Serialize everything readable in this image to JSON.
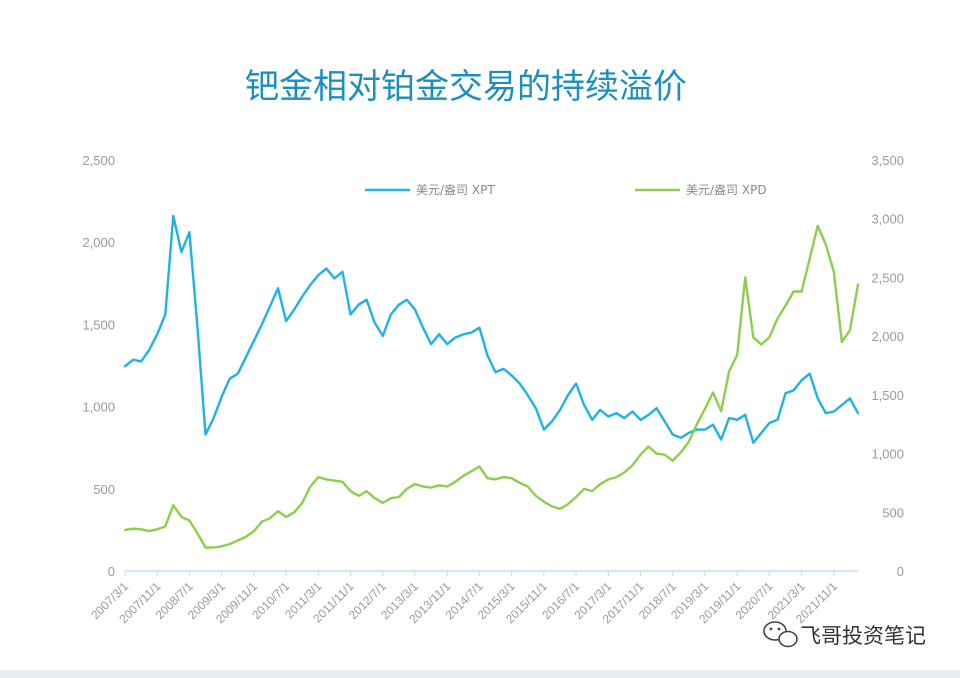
{
  "colors": {
    "xpt": "#1eb2e8",
    "xpd": "#8ccf4d",
    "title": "#1a8fc0",
    "axis": "#b9e6f5",
    "tick": "#9a9a9a"
  },
  "watermark": "飞哥投资笔记",
  "chart_data": {
    "type": "line",
    "title": "钯金相对铂金交易的持续溢价",
    "legend_position": "top",
    "grid": false,
    "x_tick_labels": [
      "2007/3/1",
      "2007/11/1",
      "2008/7/1",
      "2009/3/1",
      "2009/11/1",
      "2010/7/1",
      "2011/3/1",
      "2011/11/1",
      "2012/7/1",
      "2013/3/1",
      "2013/11/1",
      "2014/7/1",
      "2015/3/1",
      "2015/11/1",
      "2016/7/1",
      "2017/3/1",
      "2017/11/1",
      "2018/7/1",
      "2019/3/1",
      "2019/11/1",
      "2020/7/1",
      "2021/3/1",
      "2021/11/1"
    ],
    "y_left": {
      "range": [
        0,
        2500
      ],
      "ticks": [
        "0",
        "500",
        "1,000",
        "1,500",
        "2,000",
        "2,500"
      ],
      "tick_values": [
        0,
        500,
        1000,
        1500,
        2000,
        2500
      ]
    },
    "y_right": {
      "range": [
        0,
        3500
      ],
      "ticks": [
        "0",
        "500",
        "1,000",
        "1,500",
        "2,000",
        "2,500",
        "3,000",
        "3,500"
      ],
      "tick_values": [
        0,
        500,
        1000,
        1500,
        2000,
        2500,
        3000,
        3500
      ]
    },
    "series": [
      {
        "name": "美元/盎司 XPT",
        "axis": "left",
        "color": "#1eb2e8",
        "x": [
          "2007/3/1",
          "2007/5/1",
          "2007/7/1",
          "2007/9/1",
          "2007/11/1",
          "2008/1/1",
          "2008/3/1",
          "2008/5/1",
          "2008/7/1",
          "2008/9/1",
          "2008/11/1",
          "2009/1/1",
          "2009/3/1",
          "2009/5/1",
          "2009/7/1",
          "2009/9/1",
          "2009/11/1",
          "2010/1/1",
          "2010/3/1",
          "2010/5/1",
          "2010/7/1",
          "2010/9/1",
          "2010/11/1",
          "2011/1/1",
          "2011/3/1",
          "2011/5/1",
          "2011/7/1",
          "2011/9/1",
          "2011/11/1",
          "2012/1/1",
          "2012/3/1",
          "2012/5/1",
          "2012/7/1",
          "2012/9/1",
          "2012/11/1",
          "2013/1/1",
          "2013/3/1",
          "2013/5/1",
          "2013/7/1",
          "2013/9/1",
          "2013/11/1",
          "2014/1/1",
          "2014/3/1",
          "2014/5/1",
          "2014/7/1",
          "2014/9/1",
          "2014/11/1",
          "2015/1/1",
          "2015/3/1",
          "2015/5/1",
          "2015/7/1",
          "2015/9/1",
          "2015/11/1",
          "2016/1/1",
          "2016/3/1",
          "2016/5/1",
          "2016/7/1",
          "2016/9/1",
          "2016/11/1",
          "2017/1/1",
          "2017/3/1",
          "2017/5/1",
          "2017/7/1",
          "2017/9/1",
          "2017/11/1",
          "2018/1/1",
          "2018/3/1",
          "2018/5/1",
          "2018/7/1",
          "2018/9/1",
          "2018/11/1",
          "2019/1/1",
          "2019/3/1",
          "2019/5/1",
          "2019/7/1",
          "2019/9/1",
          "2019/11/1",
          "2020/1/1",
          "2020/3/1",
          "2020/5/1",
          "2020/7/1",
          "2020/9/1",
          "2020/11/1",
          "2021/1/1",
          "2021/3/1",
          "2021/5/1",
          "2021/7/1",
          "2021/9/1",
          "2021/11/1",
          "2022/1/1",
          "2022/3/1",
          "2022/5/1"
        ],
        "values": [
          1245,
          1285,
          1275,
          1345,
          1440,
          1560,
          2160,
          1940,
          2060,
          1480,
          830,
          930,
          1060,
          1170,
          1200,
          1300,
          1400,
          1500,
          1610,
          1720,
          1520,
          1590,
          1670,
          1740,
          1800,
          1840,
          1780,
          1820,
          1560,
          1620,
          1650,
          1510,
          1430,
          1560,
          1620,
          1650,
          1590,
          1480,
          1380,
          1440,
          1380,
          1420,
          1440,
          1450,
          1480,
          1310,
          1210,
          1230,
          1190,
          1140,
          1070,
          990,
          860,
          910,
          980,
          1070,
          1140,
          1010,
          920,
          980,
          940,
          960,
          930,
          970,
          920,
          950,
          990,
          910,
          830,
          810,
          840,
          860,
          860,
          890,
          800,
          930,
          920,
          950,
          780,
          840,
          900,
          920,
          1080,
          1100,
          1160,
          1200,
          1050,
          960,
          970,
          1010,
          1050,
          960
        ]
      },
      {
        "name": "美元/盎司 XPD",
        "axis": "right",
        "color": "#8ccf4d",
        "x": [
          "2007/3/1",
          "2007/5/1",
          "2007/7/1",
          "2007/9/1",
          "2007/11/1",
          "2008/1/1",
          "2008/3/1",
          "2008/5/1",
          "2008/7/1",
          "2008/9/1",
          "2008/11/1",
          "2009/1/1",
          "2009/3/1",
          "2009/5/1",
          "2009/7/1",
          "2009/9/1",
          "2009/11/1",
          "2010/1/1",
          "2010/3/1",
          "2010/5/1",
          "2010/7/1",
          "2010/9/1",
          "2010/11/1",
          "2011/1/1",
          "2011/3/1",
          "2011/5/1",
          "2011/7/1",
          "2011/9/1",
          "2011/11/1",
          "2012/1/1",
          "2012/3/1",
          "2012/5/1",
          "2012/7/1",
          "2012/9/1",
          "2012/11/1",
          "2013/1/1",
          "2013/3/1",
          "2013/5/1",
          "2013/7/1",
          "2013/9/1",
          "2013/11/1",
          "2014/1/1",
          "2014/3/1",
          "2014/5/1",
          "2014/7/1",
          "2014/9/1",
          "2014/11/1",
          "2015/1/1",
          "2015/3/1",
          "2015/5/1",
          "2015/7/1",
          "2015/9/1",
          "2015/11/1",
          "2016/1/1",
          "2016/3/1",
          "2016/5/1",
          "2016/7/1",
          "2016/9/1",
          "2016/11/1",
          "2017/1/1",
          "2017/3/1",
          "2017/5/1",
          "2017/7/1",
          "2017/9/1",
          "2017/11/1",
          "2018/1/1",
          "2018/3/1",
          "2018/5/1",
          "2018/7/1",
          "2018/9/1",
          "2018/11/1",
          "2019/1/1",
          "2019/3/1",
          "2019/5/1",
          "2019/7/1",
          "2019/9/1",
          "2019/11/1",
          "2020/1/1",
          "2020/3/1",
          "2020/5/1",
          "2020/7/1",
          "2020/9/1",
          "2020/11/1",
          "2021/1/1",
          "2021/3/1",
          "2021/5/1",
          "2021/7/1",
          "2021/9/1",
          "2021/11/1",
          "2022/1/1",
          "2022/3/1",
          "2022/5/1"
        ],
        "values": [
          350,
          360,
          355,
          340,
          355,
          380,
          560,
          460,
          430,
          320,
          200,
          200,
          210,
          230,
          260,
          290,
          340,
          420,
          450,
          510,
          460,
          500,
          580,
          720,
          800,
          780,
          770,
          760,
          680,
          640,
          680,
          620,
          580,
          620,
          630,
          700,
          740,
          720,
          710,
          730,
          720,
          760,
          810,
          850,
          890,
          790,
          780,
          800,
          790,
          750,
          720,
          640,
          590,
          550,
          530,
          570,
          630,
          700,
          680,
          740,
          780,
          800,
          840,
          900,
          990,
          1060,
          1000,
          990,
          940,
          1010,
          1100,
          1250,
          1380,
          1520,
          1360,
          1700,
          1840,
          2500,
          1990,
          1930,
          1990,
          2150,
          2260,
          2380,
          2380,
          2660,
          2940,
          2780,
          2550,
          1950,
          2050,
          2440
        ]
      }
    ]
  }
}
